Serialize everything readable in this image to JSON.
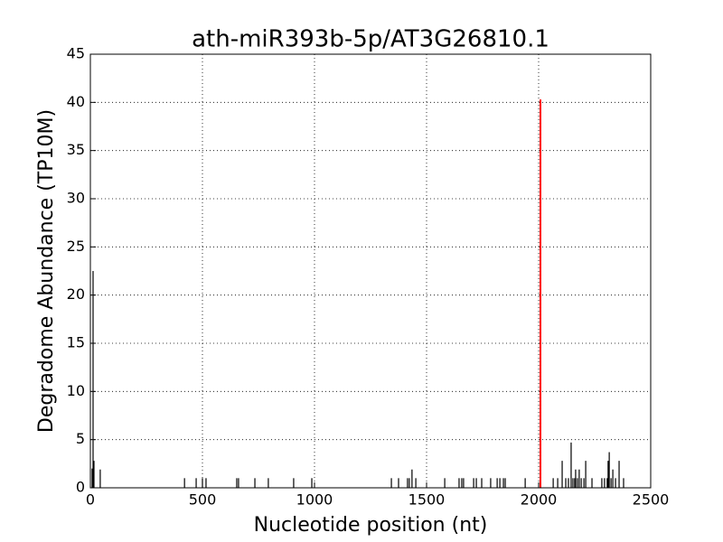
{
  "chart_data": {
    "type": "stem",
    "title": "ath-miR393b-5p/AT3G26810.1",
    "x_label": "Nucleotide position (nt)",
    "y_label": "Degradome Abundance (TP10M)",
    "xlim": [
      0,
      2500
    ],
    "xticks": [
      0,
      500,
      1000,
      1500,
      2000,
      2500
    ],
    "ylim": [
      0,
      45
    ],
    "yticks": [
      0,
      5,
      10,
      15,
      20,
      25,
      30,
      35,
      40,
      45
    ],
    "grid": true,
    "series": [
      {
        "color": "#000000",
        "x": [
          8,
          12,
          16,
          44,
          420,
          472,
          500,
          516,
          653,
          661,
          734,
          794,
          907,
          988,
          1343,
          1375,
          1415,
          1423,
          1435,
          1452,
          1581,
          1645,
          1657,
          1665,
          1710,
          1722,
          1746,
          1786,
          1815,
          1827,
          1843,
          1851,
          1940,
          2065,
          2085,
          2105,
          2121,
          2133,
          2145,
          2153,
          2161,
          2165,
          2173,
          2181,
          2190,
          2202,
          2210,
          2238,
          2282,
          2294,
          2306,
          2310,
          2315,
          2323,
          2331,
          2343,
          2359,
          2379
        ],
        "values": [
          2,
          22.5,
          2.8,
          1.9,
          1,
          1,
          1,
          1,
          1,
          1,
          1,
          1,
          1,
          1,
          1,
          1,
          1,
          1,
          1.9,
          1,
          1,
          1,
          1,
          1,
          1,
          1,
          1,
          1,
          1,
          1,
          1,
          1,
          1,
          1,
          1,
          2.8,
          1,
          1,
          4.7,
          1,
          1,
          1.9,
          1,
          1.9,
          1,
          1,
          2.8,
          1,
          1,
          1,
          1,
          2.8,
          3.7,
          1,
          1.9,
          1,
          2.8,
          1
        ]
      },
      {
        "color": "#ff0000",
        "x": [
          2008
        ],
        "values": [
          40.3
        ]
      }
    ]
  }
}
